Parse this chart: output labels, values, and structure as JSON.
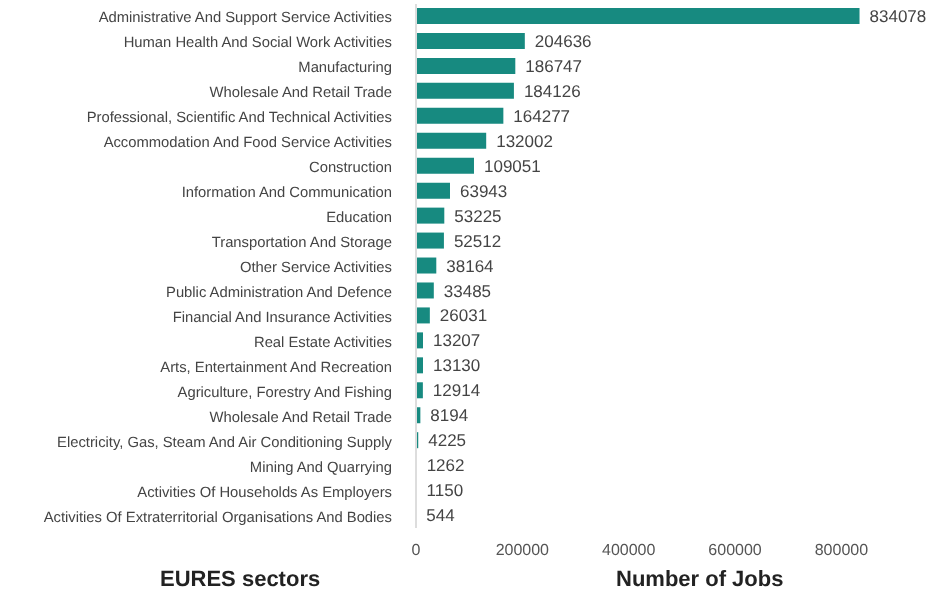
{
  "chart_data": {
    "type": "bar",
    "orientation": "horizontal",
    "xlabel": "Number of Jobs",
    "ylabel": "EURES sectors",
    "categories": [
      "Administrative And Support Service Activities",
      "Human Health And Social Work Activities",
      "Manufacturing",
      "Wholesale And Retail Trade",
      "Professional, Scientific And Technical Activities",
      "Accommodation And Food Service Activities",
      "Construction",
      "Information And Communication",
      "Education",
      "Transportation And Storage",
      "Other Service Activities",
      "Public Administration And Defence",
      "Financial And Insurance Activities",
      "Real Estate Activities",
      "Arts, Entertainment And Recreation",
      "Agriculture, Forestry And Fishing",
      "Wholesale And Retail Trade",
      "Electricity, Gas, Steam And Air Conditioning Supply",
      "Mining And Quarrying",
      "Activities Of Households As Employers",
      "Activities Of Extraterritorial Organisations And Bodies"
    ],
    "values": [
      834078,
      204636,
      186747,
      184126,
      164277,
      132002,
      109051,
      63943,
      53225,
      52512,
      38164,
      33485,
      26031,
      13207,
      13130,
      12914,
      8194,
      4225,
      1262,
      1150,
      544
    ],
    "color": "#178a80",
    "data_labels": true,
    "grid": false,
    "xlim": [
      0,
      850000
    ],
    "xticks": [
      0,
      200000,
      400000,
      600000,
      800000
    ]
  }
}
